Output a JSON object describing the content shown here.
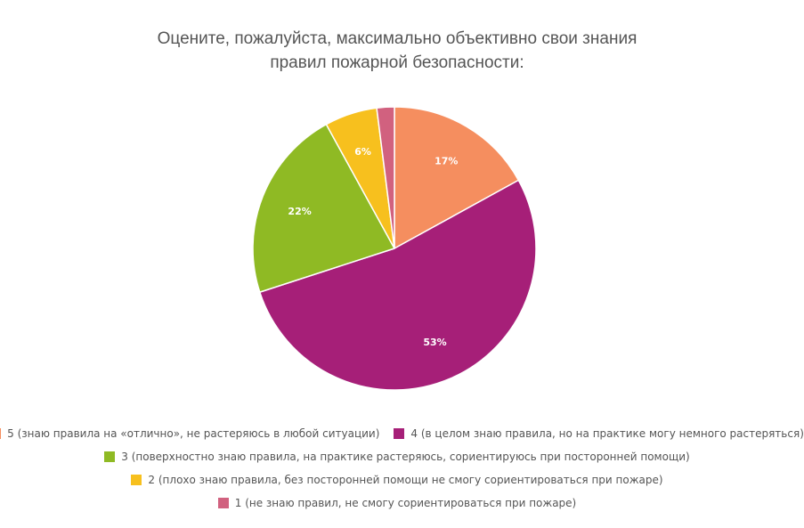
{
  "chart_data": {
    "type": "pie",
    "title": "Оцените, пожалуйста, максимально объективно свои знания правил пожарной безопасности:",
    "title_lines": [
      "Оцените, пожалуйста, максимально объективно свои знания",
      "правил пожарной безопасности:"
    ],
    "slices": [
      {
        "label": "5 (знаю правила на «отлично», не растеряюсь в любой ситуации)",
        "value": 17,
        "display": "17%",
        "color": "#f58e5f"
      },
      {
        "label": "4 (в целом знаю правила, но на практике могу немного растеряться)",
        "value": 53,
        "display": "53%",
        "color": "#a61f78"
      },
      {
        "label": "3 (поверхностно знаю правила, на практике растеряюсь, сориентируюсь при посторонней помощи)",
        "value": 22,
        "display": "22%",
        "color": "#8fba24"
      },
      {
        "label": "2 (плохо знаю правила, без посторонней помощи не смогу сориентироваться при пожаре)",
        "value": 6,
        "display": "6%",
        "color": "#f7c01e"
      },
      {
        "label": "1 (не знаю правил, не смогу сориентироваться при пожаре)",
        "value": 2,
        "display": "",
        "color": "#d1617f"
      }
    ],
    "legend_position": "bottom"
  }
}
